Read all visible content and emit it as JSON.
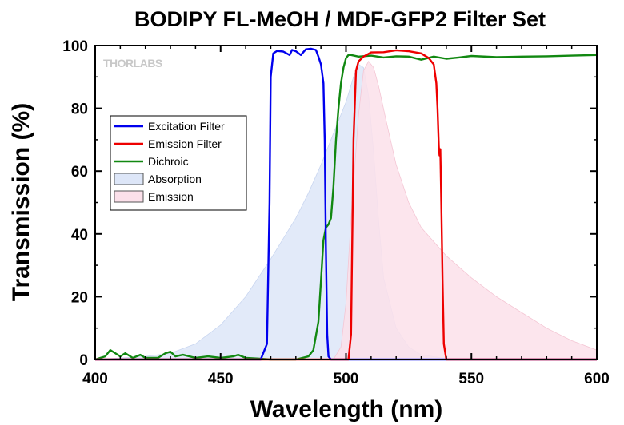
{
  "chart_data": {
    "type": "line",
    "title": "BODIPY FL-MeOH / MDF-GFP2 Filter Set",
    "xlabel": "Wavelength (nm)",
    "ylabel": "Transmission (%)",
    "xlim": [
      400,
      600
    ],
    "ylim": [
      0,
      100
    ],
    "xticks": [
      400,
      450,
      500,
      550,
      600
    ],
    "yticks": [
      0,
      20,
      40,
      60,
      80,
      100
    ],
    "grid": false,
    "legend_position": "upper-left",
    "logo": "THORLABS",
    "series": [
      {
        "name": "Absorption",
        "style": "area",
        "color": "#dde6f8",
        "edge": "#c9d6f0",
        "x": [
          400,
          420,
          430,
          440,
          450,
          460,
          470,
          480,
          485,
          490,
          495,
          500,
          503,
          505,
          507,
          509,
          511,
          513,
          515,
          520,
          525,
          530,
          540,
          600
        ],
        "values": [
          0,
          1,
          2,
          5,
          11,
          20,
          32,
          45,
          53,
          62,
          72,
          82,
          90,
          94,
          93,
          84,
          66,
          44,
          26,
          10,
          4,
          1.5,
          0.3,
          0
        ]
      },
      {
        "name": "Emission",
        "style": "area",
        "color": "#fce0ea",
        "edge": "#f4c6d4",
        "x": [
          400,
          495,
          498,
          500,
          502,
          505,
          507,
          509,
          511,
          513,
          516,
          520,
          525,
          530,
          540,
          550,
          560,
          570,
          580,
          590,
          600
        ],
        "values": [
          0,
          0,
          4,
          18,
          45,
          78,
          92,
          95,
          93,
          87,
          76,
          62,
          50,
          42,
          33,
          26,
          20,
          15,
          10,
          6,
          3
        ]
      },
      {
        "name": "Excitation Filter",
        "style": "line",
        "color": "#0000ee",
        "x": [
          400,
          466,
          468.5,
          469.5,
          470,
          471,
          472.5,
          475,
          477.5,
          478.5,
          480,
          482,
          484,
          486,
          488,
          489,
          490,
          491,
          491.5,
          492,
          492.5,
          493,
          494,
          500,
          600
        ],
        "values": [
          0,
          0,
          5,
          50,
          90,
          97.5,
          98.3,
          98.1,
          97,
          98.6,
          98.2,
          97,
          98.8,
          99,
          98.6,
          96.5,
          94,
          88,
          70,
          35,
          8,
          1,
          0,
          0,
          0
        ]
      },
      {
        "name": "Emission Filter",
        "style": "line",
        "color": "#ee0000",
        "x": [
          400,
          501,
          502,
          503,
          504,
          505,
          507,
          510,
          515,
          520,
          525,
          530,
          533,
          535,
          536,
          536.5,
          537,
          537.3,
          537.6,
          538,
          538.5,
          539,
          540,
          600
        ],
        "values": [
          0,
          0,
          8,
          70,
          92,
          95,
          96.5,
          97.8,
          97.9,
          98.5,
          98.2,
          97.5,
          96,
          94,
          88,
          80,
          68,
          65,
          67,
          50,
          25,
          5,
          0,
          0
        ]
      },
      {
        "name": "Dichroic",
        "style": "line",
        "color": "#118811",
        "x": [
          400,
          404,
          406,
          408,
          410,
          412,
          415,
          418,
          420,
          425,
          428,
          430,
          432,
          435,
          440,
          445,
          450,
          455,
          457,
          460,
          465,
          470,
          480,
          485,
          487,
          489,
          490,
          491,
          492,
          493,
          494,
          495,
          496,
          497,
          498,
          499,
          500,
          501,
          502,
          505,
          510,
          515,
          520,
          525,
          530,
          535,
          540,
          545,
          550,
          560,
          570,
          580,
          590,
          600
        ],
        "values": [
          0,
          1,
          3,
          2,
          1,
          2,
          0.5,
          1.5,
          0.5,
          0.5,
          2,
          2.5,
          1,
          1.5,
          0.5,
          1,
          0.5,
          1,
          1.5,
          0.5,
          0.3,
          0,
          0,
          1,
          3,
          12,
          25,
          38,
          42,
          43,
          45,
          55,
          70,
          80,
          88,
          93,
          96,
          97,
          97,
          96.5,
          96.8,
          96.2,
          96.6,
          96.5,
          95.5,
          96.5,
          95.8,
          96.2,
          96.7,
          96.3,
          96.5,
          96.6,
          96.8,
          97
        ]
      }
    ]
  }
}
